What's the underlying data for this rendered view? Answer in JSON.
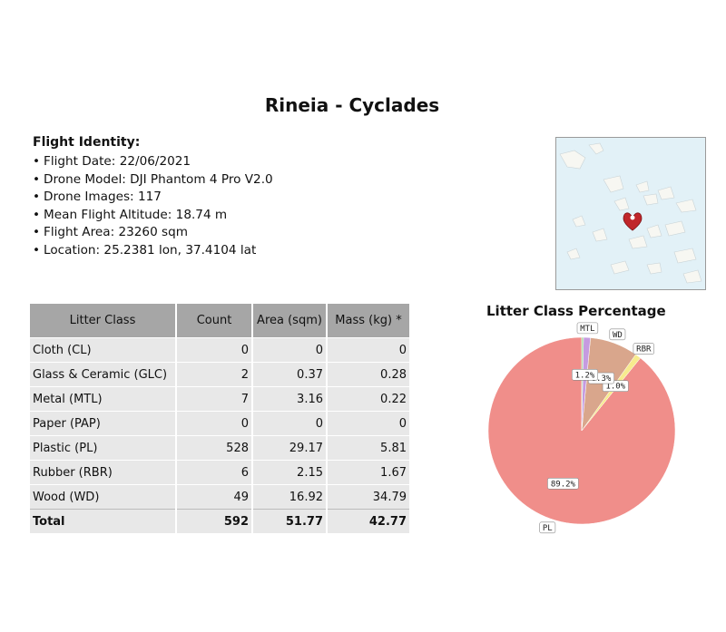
{
  "title": "Rineia - Cyclades",
  "identity": {
    "heading": "Flight Identity:",
    "items": [
      "Flight Date: 22/06/2021",
      "Drone Model: DJI Phantom 4 Pro V2.0",
      "Drone Images: 117",
      "Mean Flight Altitude: 18.74 m",
      "Flight Area: 23260 sqm",
      "Location: 25.2381 lon, 37.4104 lat"
    ]
  },
  "table": {
    "headers": [
      "Litter Class",
      "Count",
      "Area (sqm)",
      "Mass (kg) *"
    ],
    "rows": [
      [
        "Cloth (CL)",
        "0",
        "0",
        "0"
      ],
      [
        "Glass & Ceramic (GLC)",
        "2",
        "0.37",
        "0.28"
      ],
      [
        "Metal (MTL)",
        "7",
        "3.16",
        "0.22"
      ],
      [
        "Paper (PAP)",
        "0",
        "0",
        "0"
      ],
      [
        "Plastic (PL)",
        "528",
        "29.17",
        "5.81"
      ],
      [
        "Rubber (RBR)",
        "6",
        "2.15",
        "1.67"
      ],
      [
        "Wood (WD)",
        "49",
        "16.92",
        "34.79"
      ]
    ],
    "total": [
      "Total",
      "592",
      "51.77",
      "42.77"
    ]
  },
  "chart_data": {
    "type": "pie",
    "title": "Litter Class Percentage",
    "slices": [
      {
        "label": "PL",
        "pct_label": "89.2%",
        "value": 89.2,
        "color": "#f08e8a"
      },
      {
        "label": "RBR",
        "pct_label": "1.0%",
        "value": 1.0,
        "color": "#f7eb8e"
      },
      {
        "label": "WD",
        "pct_label": "8.3%",
        "value": 8.3,
        "color": "#d9a68c"
      },
      {
        "label": "MTL",
        "pct_label": "1.2%",
        "value": 1.2,
        "color": "#c59be0"
      },
      {
        "label": "",
        "pct_label": "",
        "value": 0.3,
        "color": "#9ed99a"
      }
    ]
  },
  "map": {
    "marker_color": "#c0262a",
    "sea_color": "#e2f1f7",
    "land_color": "#f7f7f2"
  }
}
